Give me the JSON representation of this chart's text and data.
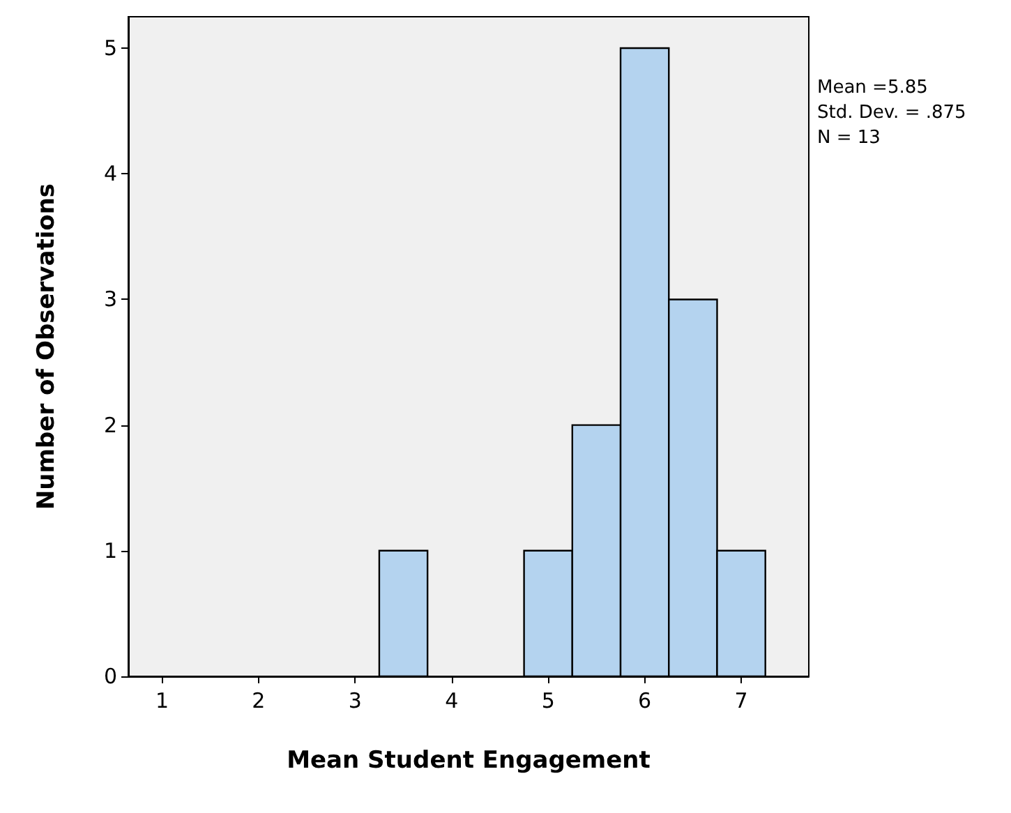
{
  "chart_data": {
    "type": "histogram",
    "xlabel": "Mean Student Engagement",
    "ylabel": "Number of Observations",
    "bins": [
      3.25,
      3.75,
      4.25,
      4.75,
      5.25,
      5.75,
      6.25,
      6.75,
      7.25
    ],
    "values": [
      1,
      0,
      0,
      1,
      2,
      5,
      3,
      1
    ],
    "color": "#b4d3ef",
    "xlim": [
      0.65,
      7.7
    ],
    "xticks": [
      1,
      2,
      3,
      4,
      5,
      6,
      7
    ],
    "ylim": [
      0,
      5.25
    ],
    "yticks": [
      0,
      1,
      2,
      3,
      4,
      5
    ],
    "grid": false,
    "annotations": [
      "Mean =5.85",
      "Std. Dev. = .875",
      "N = 13"
    ]
  }
}
